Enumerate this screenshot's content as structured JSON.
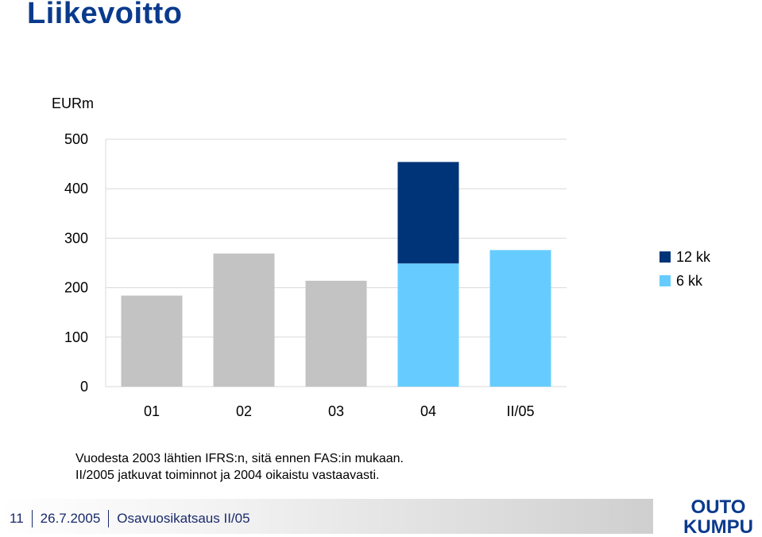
{
  "title": "Liikevoitto",
  "unit": "EURm",
  "colors": {
    "title": "#0a3a8c",
    "grey": "#c3c3c3",
    "light_blue": "#66ccff",
    "dark_blue": "#003478",
    "logo": "#0a3a8c"
  },
  "chart_data": {
    "type": "bar",
    "stacked": true,
    "categories": [
      "01",
      "02",
      "03",
      "04",
      "II/05"
    ],
    "yticks": [
      "0",
      "100",
      "200",
      "300",
      "400",
      "500"
    ],
    "ylim": [
      0,
      500
    ],
    "grid": true,
    "legend_position": "right",
    "series": [
      {
        "name": "6 kk",
        "color": "#66ccff",
        "values": [
          184,
          269,
          214,
          249,
          276
        ],
        "colors": [
          "#c3c3c3",
          "#c3c3c3",
          "#c3c3c3",
          "#66ccff",
          "#66ccff"
        ]
      },
      {
        "name": "12 kk",
        "color": "#003478",
        "values": [
          0,
          0,
          0,
          205,
          0
        ]
      }
    ]
  },
  "legend": [
    {
      "label": "12 kk",
      "color": "#003478"
    },
    {
      "label": "6 kk",
      "color": "#66ccff"
    }
  ],
  "note": {
    "line1": "Vuodesta 2003 lähtien IFRS:n, sitä ennen FAS:in mukaan.",
    "line2": "II/2005 jatkuvat toiminnot ja 2004 oikaistu vastaavasti."
  },
  "footer": {
    "page": "11",
    "date": "26.7.2005",
    "text": "Osavuosikatsaus II/05"
  },
  "logo": {
    "line1": "OUTO",
    "line2": "KUMPU"
  }
}
